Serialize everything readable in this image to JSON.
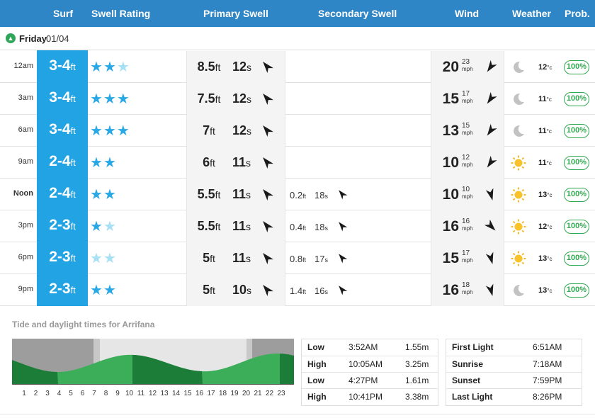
{
  "header": {
    "surf": "Surf",
    "swell_rating": "Swell Rating",
    "primary_swell": "Primary Swell",
    "secondary_swell": "Secondary Swell",
    "wind": "Wind",
    "weather": "Weather",
    "prob": "Prob."
  },
  "day": {
    "name": "Friday",
    "date": "01/04"
  },
  "colors": {
    "header_bg": "#2f86c6",
    "surf_bg": "#21a3e4",
    "star": "#2aa8e6",
    "star_faded": "#a7dff5",
    "prob_green": "#2fa84f",
    "tide_green": "#3cae5a",
    "tide_dark_green": "#1c7d38"
  },
  "rows": [
    {
      "time": "12am",
      "surf": "3-4",
      "surf_unit": "ft",
      "stars": [
        "full",
        "full",
        "faded"
      ],
      "ps_h": "8.5",
      "ps_h_unit": "ft",
      "ps_p": "12",
      "ps_p_unit": "s",
      "ps_dir": "arrow-up-left",
      "ss_h": "",
      "ss_h_unit": "",
      "ss_p": "",
      "ss_p_unit": "",
      "wind": "20",
      "gust": "23",
      "wind_unit": "mph",
      "wind_dir": "arrow-down-left",
      "weather": "moon-icon",
      "temp": "12",
      "temp_unit": "°c",
      "prob": "100%"
    },
    {
      "time": "3am",
      "surf": "3-4",
      "surf_unit": "ft",
      "stars": [
        "full",
        "full",
        "full"
      ],
      "ps_h": "7.5",
      "ps_h_unit": "ft",
      "ps_p": "12",
      "ps_p_unit": "s",
      "ps_dir": "arrow-up-left",
      "ss_h": "",
      "ss_h_unit": "",
      "ss_p": "",
      "ss_p_unit": "",
      "wind": "15",
      "gust": "17",
      "wind_unit": "mph",
      "wind_dir": "arrow-down-left",
      "weather": "moon-icon",
      "temp": "11",
      "temp_unit": "°c",
      "prob": "100%"
    },
    {
      "time": "6am",
      "surf": "3-4",
      "surf_unit": "ft",
      "stars": [
        "full",
        "full",
        "full"
      ],
      "ps_h": "7",
      "ps_h_unit": "ft",
      "ps_p": "12",
      "ps_p_unit": "s",
      "ps_dir": "arrow-up-left",
      "ss_h": "",
      "ss_h_unit": "",
      "ss_p": "",
      "ss_p_unit": "",
      "wind": "13",
      "gust": "15",
      "wind_unit": "mph",
      "wind_dir": "arrow-down-left",
      "weather": "moon-icon",
      "temp": "11",
      "temp_unit": "°c",
      "prob": "100%"
    },
    {
      "time": "9am",
      "surf": "2-4",
      "surf_unit": "ft",
      "stars": [
        "full",
        "full"
      ],
      "ps_h": "6",
      "ps_h_unit": "ft",
      "ps_p": "11",
      "ps_p_unit": "s",
      "ps_dir": "arrow-up-left",
      "ss_h": "",
      "ss_h_unit": "",
      "ss_p": "",
      "ss_p_unit": "",
      "wind": "10",
      "gust": "12",
      "wind_unit": "mph",
      "wind_dir": "arrow-down-left",
      "weather": "sun-icon",
      "temp": "11",
      "temp_unit": "°c",
      "prob": "100%"
    },
    {
      "time": "Noon",
      "surf": "2-4",
      "surf_unit": "ft",
      "stars": [
        "full",
        "full"
      ],
      "ps_h": "5.5",
      "ps_h_unit": "ft",
      "ps_p": "11",
      "ps_p_unit": "s",
      "ps_dir": "arrow-up-left",
      "ss_h": "0.2",
      "ss_h_unit": "ft",
      "ss_p": "18",
      "ss_p_unit": "s",
      "wind": "10",
      "gust": "10",
      "wind_unit": "mph",
      "wind_dir": "arrow-down",
      "weather": "sun-icon",
      "temp": "13",
      "temp_unit": "°c",
      "prob": "100%"
    },
    {
      "time": "3pm",
      "surf": "2-3",
      "surf_unit": "ft",
      "stars": [
        "full",
        "faded"
      ],
      "ps_h": "5.5",
      "ps_h_unit": "ft",
      "ps_p": "11",
      "ps_p_unit": "s",
      "ps_dir": "arrow-up-left",
      "ss_h": "0.4",
      "ss_h_unit": "ft",
      "ss_p": "18",
      "ss_p_unit": "s",
      "wind": "16",
      "gust": "16",
      "wind_unit": "mph",
      "wind_dir": "arrow-down-right",
      "weather": "sun-icon",
      "temp": "12",
      "temp_unit": "°c",
      "prob": "100%"
    },
    {
      "time": "6pm",
      "surf": "2-3",
      "surf_unit": "ft",
      "stars": [
        "faded",
        "faded"
      ],
      "ps_h": "5",
      "ps_h_unit": "ft",
      "ps_p": "11",
      "ps_p_unit": "s",
      "ps_dir": "arrow-up-left",
      "ss_h": "0.8",
      "ss_h_unit": "ft",
      "ss_p": "17",
      "ss_p_unit": "s",
      "wind": "15",
      "gust": "17",
      "wind_unit": "mph",
      "wind_dir": "arrow-down",
      "weather": "sun-icon",
      "temp": "13",
      "temp_unit": "°c",
      "prob": "100%"
    },
    {
      "time": "9pm",
      "surf": "2-3",
      "surf_unit": "ft",
      "stars": [
        "full",
        "full"
      ],
      "ps_h": "5",
      "ps_h_unit": "ft",
      "ps_p": "10",
      "ps_p_unit": "s",
      "ps_dir": "arrow-up-left",
      "ss_h": "1.4",
      "ss_h_unit": "ft",
      "ss_p": "16",
      "ss_p_unit": "s",
      "wind": "16",
      "gust": "18",
      "wind_unit": "mph",
      "wind_dir": "arrow-down",
      "weather": "moon-icon",
      "temp": "13",
      "temp_unit": "°c",
      "prob": "100%"
    }
  ],
  "tide": {
    "title": "Tide and daylight times for Arrifana",
    "hours": [
      "1",
      "2",
      "3",
      "4",
      "5",
      "6",
      "7",
      "8",
      "9",
      "10",
      "11",
      "12",
      "13",
      "14",
      "15",
      "16",
      "17",
      "18",
      "19",
      "20",
      "21",
      "22",
      "23"
    ],
    "tides": [
      {
        "type": "Low",
        "time": "3:52AM",
        "height": "1.55m"
      },
      {
        "type": "High",
        "time": "10:05AM",
        "height": "3.25m"
      },
      {
        "type": "Low",
        "time": "4:27PM",
        "height": "1.61m"
      },
      {
        "type": "High",
        "time": "10:41PM",
        "height": "3.38m"
      }
    ],
    "daylight": [
      {
        "label": "First Light",
        "time": "6:51AM"
      },
      {
        "label": "Sunrise",
        "time": "7:18AM"
      },
      {
        "label": "Sunset",
        "time": "7:59PM"
      },
      {
        "label": "Last Light",
        "time": "8:26PM"
      }
    ]
  }
}
